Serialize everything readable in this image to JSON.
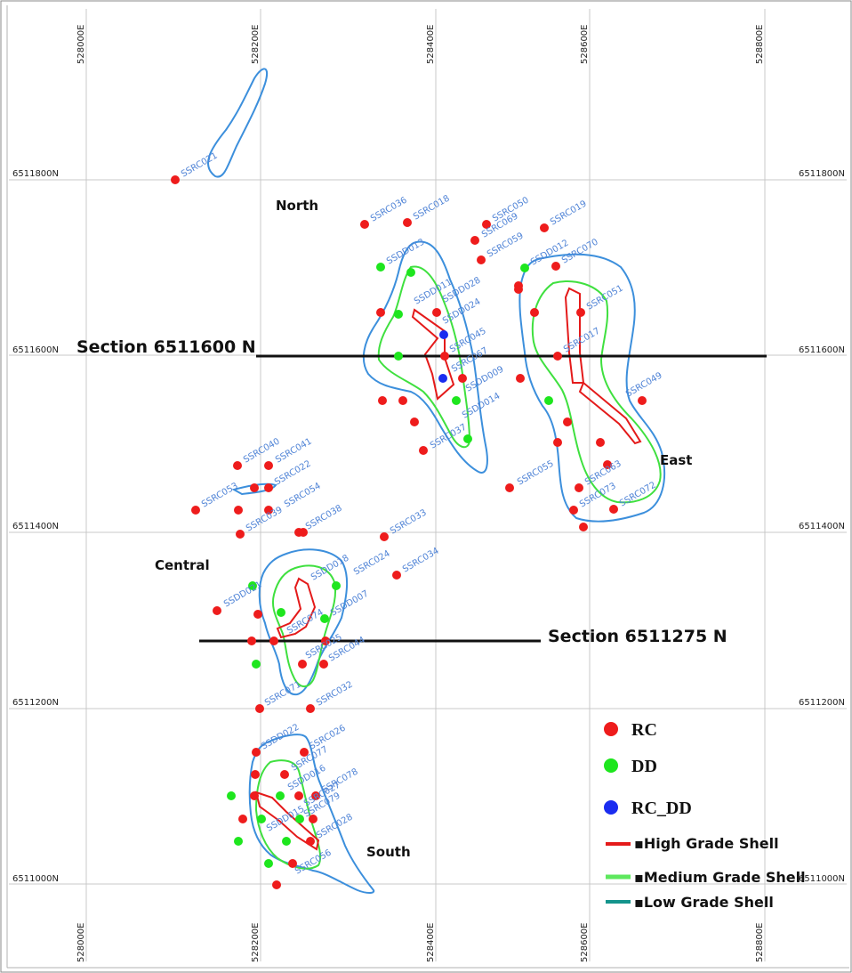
{
  "grid": {
    "easting_labels": [
      "528000E",
      "528200E",
      "528400E",
      "528600E",
      "528800E"
    ],
    "northing_labels": [
      "6511800N",
      "6511600N",
      "6511400N",
      "6511200N",
      "6511000N"
    ]
  },
  "zones": [
    "North",
    "East",
    "Central",
    "South"
  ],
  "sections": [
    "Section 6511600 N",
    "Section 6511275 N"
  ],
  "legend": {
    "hole_types": [
      {
        "label": "RC",
        "color": "#ee1c1c"
      },
      {
        "label": "DD",
        "color": "#1ee61e"
      },
      {
        "label": "RC_DD",
        "color": "#1a2cf0"
      }
    ],
    "shells": [
      {
        "label": "▪High Grade Shell",
        "color": "#e41a1a"
      },
      {
        "label": "▪Medium Grade Shell",
        "color": "#5ee85e"
      },
      {
        "label": "▪Low Grade Shell",
        "color": "#14948c"
      }
    ]
  },
  "holes": [
    {
      "label": "SSRC021",
      "type": "RC"
    },
    {
      "label": "SSRC036",
      "type": "RC"
    },
    {
      "label": "SSRC018",
      "type": "RC"
    },
    {
      "label": "SSRC050",
      "type": "RC"
    },
    {
      "label": "SSRC069",
      "type": "RC"
    },
    {
      "label": "SSRC019",
      "type": "RC"
    },
    {
      "label": "SSRC059",
      "type": "RC"
    },
    {
      "label": "SSDD012",
      "type": "DD"
    },
    {
      "label": "SSDD013",
      "type": "DD"
    },
    {
      "label": "SSRC070",
      "type": "RC"
    },
    {
      "label": "SSDD011",
      "type": "DD"
    },
    {
      "label": "SSDD028",
      "type": "DD"
    },
    {
      "label": "SSDD024",
      "type": "DD"
    },
    {
      "label": "SSRC051",
      "type": "RC"
    },
    {
      "label": "SSRC017",
      "type": "RC"
    },
    {
      "label": "SSRC045",
      "type": "RC"
    },
    {
      "label": "SSRC067",
      "type": "RC"
    },
    {
      "label": "SSDD009",
      "type": "DD"
    },
    {
      "label": "SSRC049",
      "type": "RC"
    },
    {
      "label": "SSDD014",
      "type": "DD"
    },
    {
      "label": "SSRC037",
      "type": "RC"
    },
    {
      "label": "SSRC055",
      "type": "RC"
    },
    {
      "label": "SSRC063",
      "type": "RC"
    },
    {
      "label": "SSRC073",
      "type": "RC"
    },
    {
      "label": "SSRC072",
      "type": "RC"
    },
    {
      "label": "SSRC040",
      "type": "RC"
    },
    {
      "label": "SSRC041",
      "type": "RC"
    },
    {
      "label": "SSRC022",
      "type": "RC"
    },
    {
      "label": "SSRC053",
      "type": "RC"
    },
    {
      "label": "SSRC054",
      "type": "RC"
    },
    {
      "label": "SSRC039",
      "type": "RC"
    },
    {
      "label": "SSRC038",
      "type": "RC"
    },
    {
      "label": "SSRC033",
      "type": "RC"
    },
    {
      "label": "SSRC034",
      "type": "RC"
    },
    {
      "label": "SSRC024",
      "type": "RC"
    },
    {
      "label": "SSDD021",
      "type": "DD"
    },
    {
      "label": "SSDD018",
      "type": "DD"
    },
    {
      "label": "SSDD007",
      "type": "DD"
    },
    {
      "label": "SSRC074",
      "type": "RC"
    },
    {
      "label": "SSRC025",
      "type": "RC"
    },
    {
      "label": "SSRC044",
      "type": "RC"
    },
    {
      "label": "SSRC071",
      "type": "RC"
    },
    {
      "label": "SSRC032",
      "type": "RC"
    },
    {
      "label": "SSDD022",
      "type": "DD"
    },
    {
      "label": "SSRC026",
      "type": "RC"
    },
    {
      "label": "SSRC077",
      "type": "RC"
    },
    {
      "label": "SSDD016",
      "type": "DD"
    },
    {
      "label": "SSRC078",
      "type": "RC"
    },
    {
      "label": "SSRC027",
      "type": "RC"
    },
    {
      "label": "SSRC079",
      "type": "RC"
    },
    {
      "label": "SSDD015",
      "type": "DD"
    },
    {
      "label": "SSRC028",
      "type": "RC"
    },
    {
      "label": "SSRC056",
      "type": "RC"
    }
  ]
}
